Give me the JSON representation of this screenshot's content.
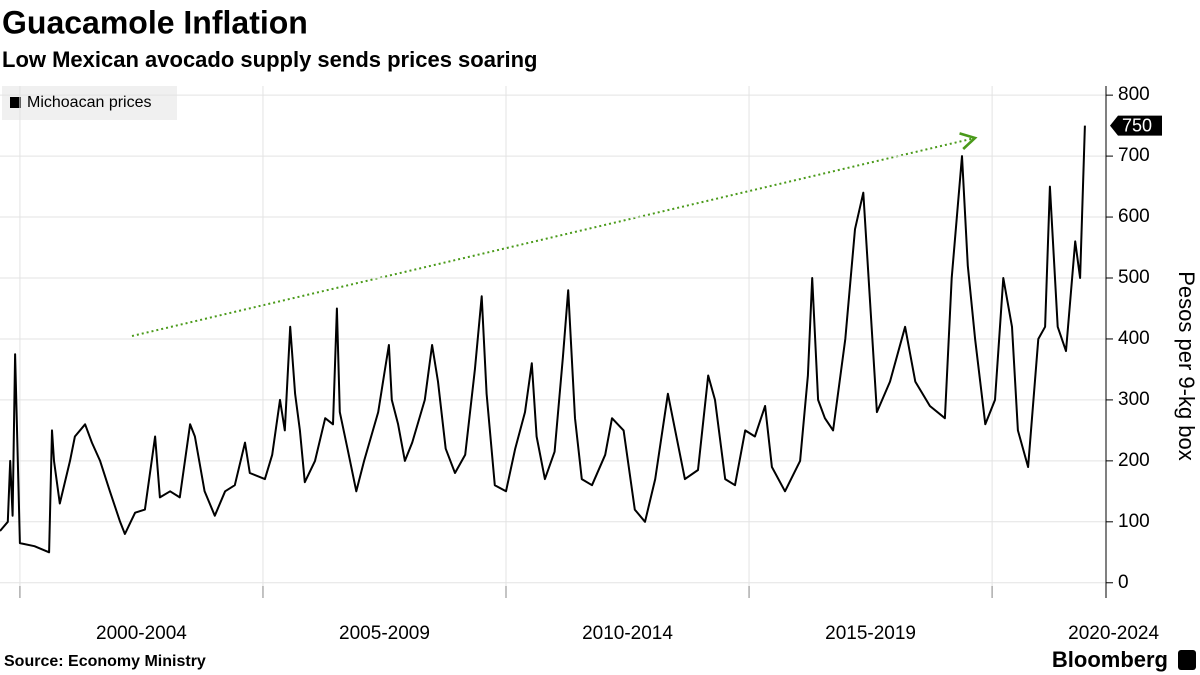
{
  "chart_data": {
    "type": "line",
    "title": "Guacamole Inflation",
    "subtitle": "Low Mexican avocado supply sends prices soaring",
    "y_label": "Pesos per 9-kg box",
    "source": "Source: Economy Ministry",
    "brand": "Bloomberg",
    "x": [
      1999.59,
      1999.75,
      1999.8,
      1999.85,
      1999.9,
      2000.0,
      2000.3,
      2000.6,
      2000.66,
      2000.7,
      2000.82,
      2001.03,
      2001.13,
      2001.34,
      2001.48,
      2001.65,
      2001.85,
      2002.06,
      2002.16,
      2002.37,
      2002.57,
      2002.78,
      2002.88,
      2003.09,
      2003.29,
      2003.5,
      2003.6,
      2003.8,
      2004.01,
      2004.22,
      2004.42,
      2004.63,
      2004.73,
      2005.04,
      2005.19,
      2005.35,
      2005.45,
      2005.56,
      2005.66,
      2005.76,
      2005.86,
      2006.07,
      2006.28,
      2006.44,
      2006.52,
      2006.58,
      2006.74,
      2006.92,
      2007.08,
      2007.37,
      2007.49,
      2007.59,
      2007.65,
      2007.78,
      2007.92,
      2008.07,
      2008.33,
      2008.48,
      2008.6,
      2008.76,
      2008.95,
      2009.16,
      2009.36,
      2009.5,
      2009.6,
      2009.77,
      2010.0,
      2010.19,
      2010.39,
      2010.53,
      2010.63,
      2010.8,
      2011.0,
      2011.17,
      2011.28,
      2011.42,
      2011.56,
      2011.77,
      2012.04,
      2012.18,
      2012.42,
      2012.65,
      2012.86,
      2013.07,
      2013.33,
      2013.48,
      2013.68,
      2013.95,
      2014.16,
      2014.3,
      2014.51,
      2014.71,
      2014.92,
      2015.12,
      2015.33,
      2015.47,
      2015.74,
      2016.05,
      2016.21,
      2016.3,
      2016.42,
      2016.56,
      2016.73,
      2016.98,
      2017.18,
      2017.35,
      2017.49,
      2017.63,
      2017.9,
      2018.21,
      2018.42,
      2018.72,
      2019.03,
      2019.17,
      2019.38,
      2019.5,
      2019.65,
      2019.86,
      2020.06,
      2020.23,
      2020.41,
      2020.53,
      2020.74,
      2020.95,
      2021.09,
      2021.19,
      2021.35,
      2021.52,
      2021.71,
      2021.81,
      2021.91
    ],
    "series": [
      {
        "name": "Michoacan prices",
        "color": "#000000",
        "values": [
          85,
          100,
          200,
          110,
          375,
          65,
          60,
          50,
          250,
          200,
          130,
          200,
          240,
          260,
          230,
          200,
          150,
          100,
          80,
          115,
          120,
          240,
          140,
          150,
          140,
          260,
          240,
          150,
          110,
          150,
          160,
          230,
          180,
          170,
          210,
          300,
          250,
          420,
          310,
          250,
          165,
          200,
          270,
          260,
          450,
          280,
          220,
          150,
          200,
          280,
          340,
          390,
          300,
          260,
          200,
          230,
          300,
          390,
          330,
          220,
          180,
          210,
          350,
          470,
          310,
          160,
          150,
          220,
          280,
          360,
          240,
          170,
          215,
          370,
          480,
          270,
          170,
          160,
          210,
          270,
          250,
          120,
          100,
          170,
          310,
          250,
          170,
          185,
          340,
          300,
          170,
          160,
          250,
          240,
          290,
          190,
          150,
          200,
          340,
          500,
          300,
          270,
          250,
          400,
          580,
          640,
          460,
          280,
          330,
          420,
          330,
          290,
          270,
          500,
          700,
          520,
          400,
          260,
          300,
          500,
          420,
          250,
          190,
          400,
          420,
          650,
          420,
          380,
          560,
          500,
          750
        ]
      }
    ],
    "xlim": [
      1999.59,
      2022.22
    ],
    "xticks": [
      {
        "value": 2000,
        "label": "2000-2004"
      },
      {
        "value": 2005,
        "label": "2005-2009"
      },
      {
        "value": 2010,
        "label": "2010-2014"
      },
      {
        "value": 2015,
        "label": "2015-2019"
      },
      {
        "value": 2020,
        "label": "2020-2024"
      }
    ],
    "ylim": [
      -25,
      815
    ],
    "yticks": [
      0,
      100,
      200,
      300,
      400,
      500,
      600,
      700,
      800
    ],
    "grid": true
  }
}
